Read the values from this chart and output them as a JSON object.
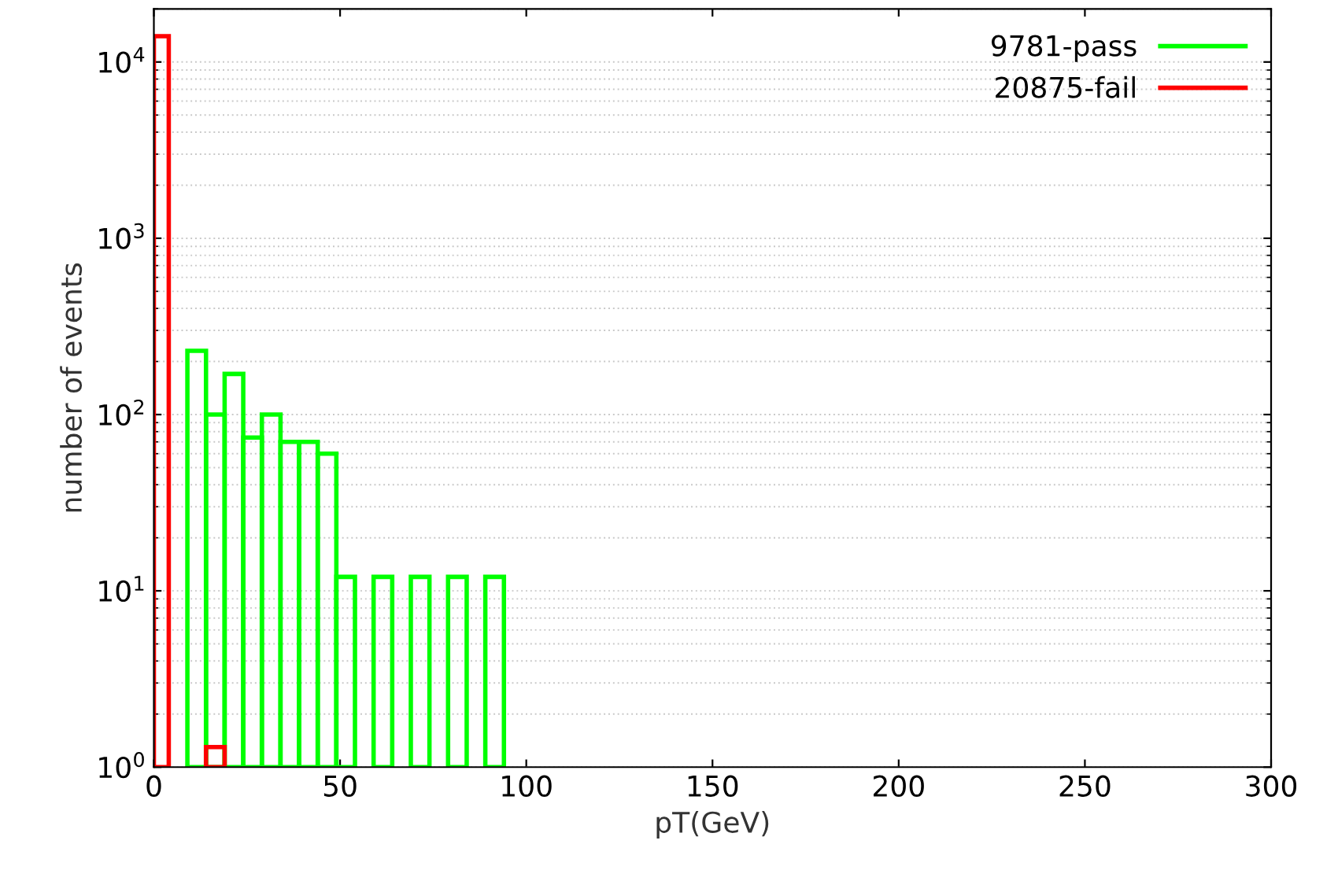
{
  "chart_data": {
    "type": "histogram",
    "xlabel": "pT(GeV)",
    "ylabel": "number of events",
    "log": "y",
    "grid": "y",
    "legend": "top right",
    "xlim": [
      0,
      300
    ],
    "xticks": [
      0,
      50,
      100,
      150,
      200,
      250,
      300
    ],
    "ylim": [
      1,
      20000
    ],
    "yticks": [
      {
        "value": 1,
        "label": "10$^{0}$"
      },
      {
        "value": 10,
        "label": "10$^{1}$"
      },
      {
        "value": 100,
        "label": "10$^{2}$"
      },
      {
        "value": 1000,
        "label": "10$^{3}$"
      },
      {
        "value": 10000,
        "label": "10$^{4}$"
      }
    ],
    "bins": [
      0,
      4,
      9,
      14,
      19,
      24,
      29,
      34,
      39,
      44,
      49,
      54,
      59,
      64,
      69,
      74,
      79,
      84,
      89,
      94
    ],
    "series": [
      {
        "name": "9781-pass",
        "color": "#00ff00",
        "values": [
          null,
          null,
          230,
          100,
          170,
          74,
          100,
          70,
          70,
          60,
          12,
          null,
          12,
          null,
          12,
          null,
          12,
          null,
          12
        ]
      },
      {
        "name": "20875-fail",
        "color": "#ff0000",
        "values": [
          14000,
          null,
          null,
          1.3,
          null,
          null,
          null,
          null,
          null,
          null,
          null,
          null,
          null,
          null,
          null,
          null,
          null,
          null,
          null
        ]
      }
    ]
  }
}
